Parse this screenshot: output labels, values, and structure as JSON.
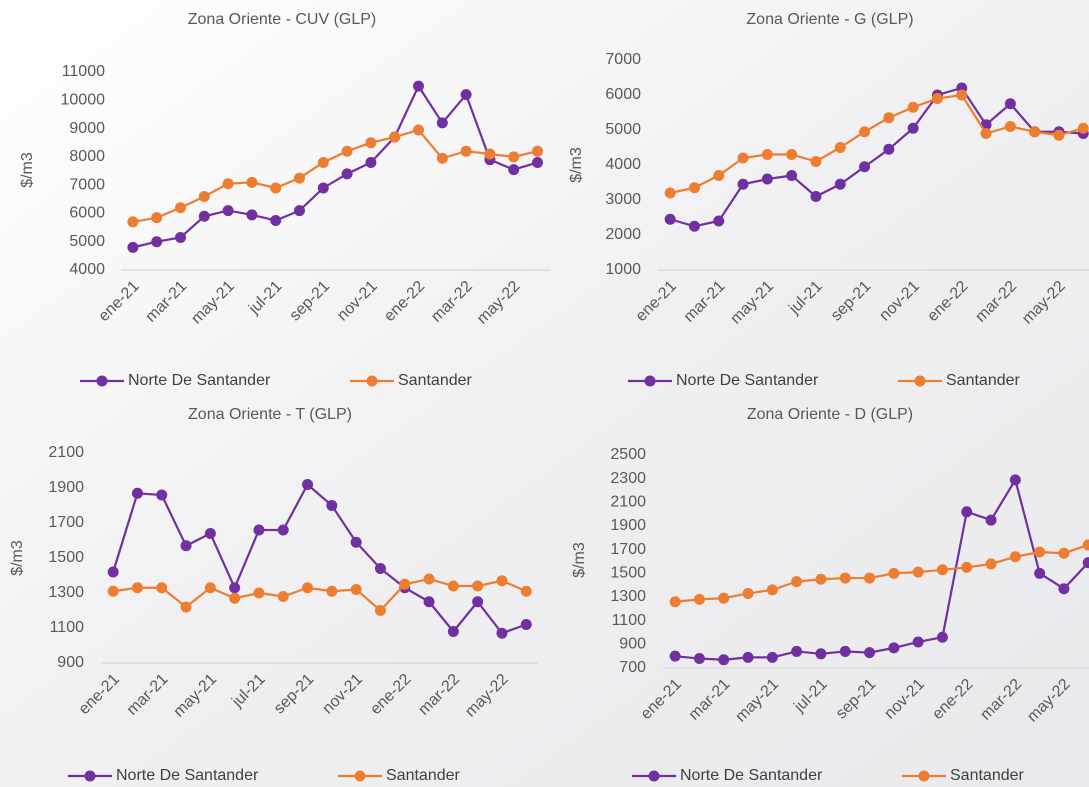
{
  "chart_data": [
    {
      "type": "line",
      "title": "Zona Oriente - CUV (GLP)",
      "y_label": "$/m3",
      "categories": [
        "ene-21",
        null,
        "mar-21",
        null,
        "may-21",
        null,
        "jul-21",
        null,
        "sep-21",
        null,
        "nov-21",
        null,
        "ene-22",
        null,
        "mar-22",
        null,
        "may-22",
        null
      ],
      "series": [
        {
          "name": "Norte De Santander",
          "color": "#7030a0",
          "values": [
            4800,
            5000,
            5150,
            5900,
            6100,
            5950,
            5750,
            6100,
            6900,
            7400,
            7800,
            8700,
            10500,
            9200,
            10200,
            7900,
            7550,
            7800
          ]
        },
        {
          "name": "Santander",
          "color": "#ed7d31",
          "values": [
            5700,
            5850,
            6200,
            6600,
            7050,
            7100,
            6900,
            7250,
            7800,
            8200,
            8500,
            8700,
            8950,
            7950,
            8200,
            8100,
            8000,
            8200
          ]
        }
      ],
      "ylim": [
        4000,
        11000
      ],
      "yticks": [
        4000,
        5000,
        6000,
        7000,
        8000,
        9000,
        10000,
        11000
      ]
    },
    {
      "type": "line",
      "title": "Zona Oriente - G (GLP)",
      "y_label": "$/m3",
      "categories": [
        "ene-21",
        null,
        "mar-21",
        null,
        "may-21",
        null,
        "jul-21",
        null,
        "sep-21",
        null,
        "nov-21",
        null,
        "ene-22",
        null,
        "mar-22",
        null,
        "may-22",
        null
      ],
      "series": [
        {
          "name": "Norte De Santander",
          "color": "#7030a0",
          "values": [
            2450,
            2250,
            2400,
            3450,
            3600,
            3700,
            3100,
            3450,
            3950,
            4450,
            5050,
            6000,
            6200,
            5150,
            5750,
            4950,
            4950,
            4900
          ]
        },
        {
          "name": "Santander",
          "color": "#ed7d31",
          "values": [
            3200,
            3350,
            3700,
            4200,
            4300,
            4300,
            4100,
            4500,
            4950,
            5350,
            5650,
            5900,
            6000,
            4900,
            5100,
            4950,
            4850,
            5050
          ]
        }
      ],
      "ylim": [
        1000,
        7000
      ],
      "yticks": [
        1000,
        2000,
        3000,
        4000,
        5000,
        6000,
        7000
      ]
    },
    {
      "type": "line",
      "title": "Zona Oriente - T (GLP)",
      "y_label": "$/m3",
      "categories": [
        "ene-21",
        null,
        "mar-21",
        null,
        "may-21",
        null,
        "jul-21",
        null,
        "sep-21",
        null,
        "nov-21",
        null,
        "ene-22",
        null,
        "mar-22",
        null,
        "may-22",
        null
      ],
      "series": [
        {
          "name": "Norte De Santander",
          "color": "#7030a0",
          "values": [
            1420,
            1870,
            1860,
            1570,
            1640,
            1330,
            1660,
            1660,
            1920,
            1800,
            1590,
            1440,
            1330,
            1250,
            1080,
            1250,
            1070,
            1120
          ]
        },
        {
          "name": "Santander",
          "color": "#ed7d31",
          "values": [
            1310,
            1330,
            1330,
            1220,
            1330,
            1270,
            1300,
            1280,
            1330,
            1310,
            1320,
            1200,
            1350,
            1380,
            1340,
            1340,
            1370,
            1310
          ]
        }
      ],
      "ylim": [
        900,
        2100
      ],
      "yticks": [
        900,
        1100,
        1300,
        1500,
        1700,
        1900,
        2100
      ]
    },
    {
      "type": "line",
      "title": "Zona Oriente - D (GLP)",
      "y_label": "$/m3",
      "categories": [
        "ene-21",
        null,
        "mar-21",
        null,
        "may-21",
        null,
        "jul-21",
        null,
        "sep-21",
        null,
        "nov-21",
        null,
        "ene-22",
        null,
        "mar-22",
        null,
        "may-22",
        null
      ],
      "series": [
        {
          "name": "Norte De Santander",
          "color": "#7030a0",
          "values": [
            800,
            780,
            770,
            790,
            790,
            840,
            820,
            840,
            830,
            870,
            920,
            960,
            2020,
            1950,
            2290,
            1500,
            1370,
            1590
          ]
        },
        {
          "name": "Santander",
          "color": "#ed7d31",
          "values": [
            1260,
            1280,
            1290,
            1330,
            1360,
            1430,
            1450,
            1460,
            1460,
            1500,
            1510,
            1530,
            1550,
            1580,
            1640,
            1680,
            1670,
            1740
          ]
        }
      ],
      "ylim": [
        700,
        2500
      ],
      "yticks": [
        700,
        900,
        1100,
        1300,
        1500,
        1700,
        1900,
        2100,
        2300,
        2500
      ]
    }
  ]
}
